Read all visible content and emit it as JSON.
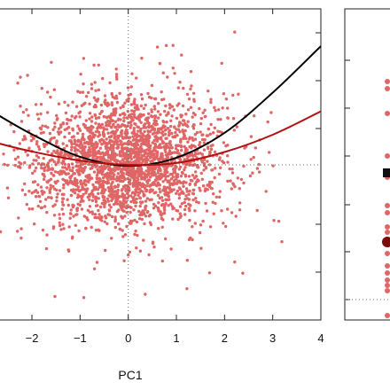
{
  "chart_data": [
    {
      "type": "scatter",
      "panel": "left",
      "xlabel": "PC1",
      "ylabel": "",
      "title": "",
      "xlim": [
        -2.7,
        4
      ],
      "ylim": [
        -3.0,
        3.5
      ],
      "x_ticks": [
        -2,
        -1,
        0,
        1,
        2,
        3,
        4
      ],
      "x_tick_labels": [
        "−2",
        "−1",
        "0",
        "1",
        "2",
        "3",
        "4"
      ],
      "reference_lines": {
        "vertical_x": 0,
        "horizontal_y": 0,
        "style": "dotted"
      },
      "point_color": "#e06666",
      "scatter_cloud": {
        "n_points": 2600,
        "center": [
          0,
          0.3
        ],
        "sd": [
          0.95,
          0.65
        ],
        "seed": 7
      },
      "series": [
        {
          "type": "scatter",
          "color": "#e06666",
          "values": "dense cloud"
        },
        {
          "type": "line",
          "color": "#000000",
          "x": [
            -2.7,
            -2,
            -1,
            0,
            1,
            2,
            3,
            4
          ],
          "y": [
            1.28,
            0.88,
            0.41,
            0.22,
            0.39,
            0.91,
            1.75,
            2.72
          ]
        },
        {
          "type": "line",
          "color": "#b01010",
          "x": [
            -2.7,
            -2,
            -1,
            0,
            1,
            2,
            3,
            4
          ],
          "y": [
            0.69,
            0.52,
            0.33,
            0.24,
            0.28,
            0.51,
            0.87,
            1.36
          ]
        }
      ],
      "grid": false
    },
    {
      "type": "scatter",
      "panel": "right",
      "title": "",
      "xlabel": "",
      "ylabel": "",
      "point_color": "#e06666",
      "y_ticks_count": 6,
      "markers": [
        {
          "kind": "square",
          "color": "#111111"
        },
        {
          "kind": "circle",
          "color": "#7a0c0c"
        }
      ]
    }
  ]
}
